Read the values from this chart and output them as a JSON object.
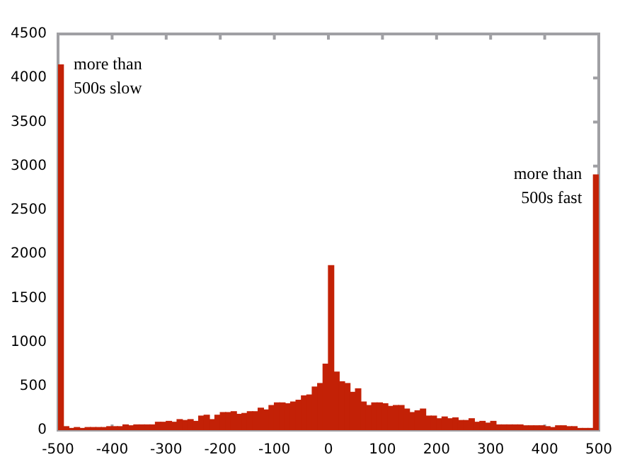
{
  "chart_data": {
    "type": "histogram",
    "color": "#c32106",
    "bins": [
      -500,
      -490,
      -480,
      -470,
      -460,
      -450,
      -440,
      -430,
      -420,
      -410,
      -400,
      -390,
      -380,
      -370,
      -360,
      -350,
      -340,
      -330,
      -320,
      -310,
      -300,
      -290,
      -280,
      -270,
      -260,
      -250,
      -240,
      -230,
      -220,
      -210,
      -200,
      -190,
      -180,
      -170,
      -160,
      -150,
      -140,
      -130,
      -120,
      -110,
      -100,
      -90,
      -80,
      -70,
      -60,
      -50,
      -40,
      -30,
      -20,
      -10,
      0,
      10,
      20,
      30,
      40,
      50,
      60,
      70,
      80,
      90,
      100,
      110,
      120,
      130,
      140,
      150,
      160,
      170,
      180,
      190,
      200,
      210,
      220,
      230,
      240,
      250,
      260,
      270,
      280,
      290,
      300,
      310,
      320,
      330,
      340,
      350,
      360,
      370,
      380,
      390,
      400,
      410,
      420,
      430,
      440,
      450,
      460,
      470,
      480,
      490,
      500
    ],
    "values": [
      4150,
      40,
      20,
      30,
      20,
      30,
      30,
      30,
      30,
      40,
      40,
      40,
      60,
      50,
      60,
      60,
      60,
      60,
      90,
      90,
      100,
      90,
      120,
      110,
      120,
      100,
      160,
      170,
      120,
      170,
      200,
      200,
      210,
      180,
      190,
      210,
      210,
      250,
      230,
      280,
      310,
      310,
      300,
      320,
      340,
      390,
      400,
      490,
      530,
      750,
      1870,
      660,
      550,
      530,
      430,
      470,
      320,
      280,
      310,
      310,
      300,
      270,
      280,
      280,
      240,
      200,
      220,
      240,
      160,
      160,
      130,
      150,
      130,
      140,
      110,
      110,
      130,
      90,
      100,
      80,
      100,
      60,
      60,
      60,
      60,
      60,
      50,
      50,
      50,
      50,
      40,
      30,
      50,
      50,
      40,
      40,
      20,
      20,
      20,
      2900
    ],
    "xlim": [
      -500,
      500
    ],
    "ylim": [
      0,
      4500
    ],
    "xticks": [
      -500,
      -400,
      -300,
      -200,
      -100,
      0,
      100,
      200,
      300,
      400,
      500
    ],
    "yticks": [
      0,
      500,
      1000,
      1500,
      2000,
      2500,
      3000,
      3500,
      4000,
      4500
    ],
    "grid": false,
    "legend": false,
    "annotations": [
      {
        "text": "more than\n500s slow",
        "x": -500,
        "y": 4150
      },
      {
        "text": "more than\n500s fast",
        "x": 490,
        "y": 2900
      }
    ]
  }
}
